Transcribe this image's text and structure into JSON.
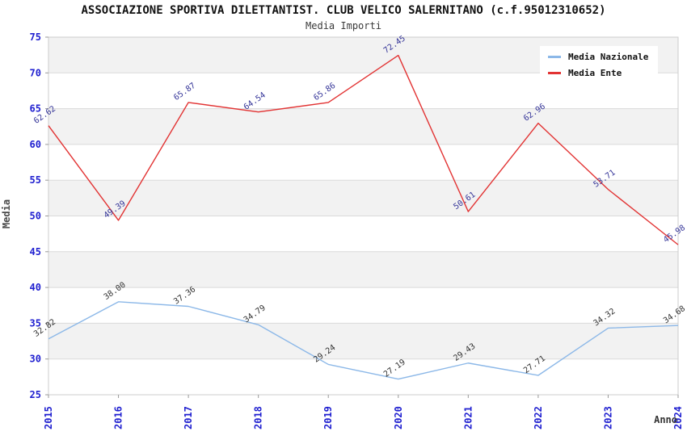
{
  "header": {
    "title": "ASSOCIAZIONE SPORTIVA DILETTANTIST. CLUB VELICO SALERNITANO (c.f.95012310652)",
    "subtitle": "Media Importi"
  },
  "chart_data": {
    "type": "line",
    "title": "ASSOCIAZIONE SPORTIVA DILETTANTIST. CLUB VELICO SALERNITANO (c.f.95012310652)",
    "subtitle": "Media Importi",
    "xlabel": "Anno",
    "ylabel": "Media",
    "categories": [
      "2015",
      "2016",
      "2017",
      "2018",
      "2019",
      "2020",
      "2021",
      "2022",
      "2023",
      "2024"
    ],
    "series": [
      {
        "name": "Media Nazionale",
        "color": "#8CB8E8",
        "label_color": "#333333",
        "values": [
          32.82,
          38.0,
          37.36,
          34.79,
          29.24,
          27.19,
          29.43,
          27.71,
          34.32,
          34.68
        ],
        "labels": [
          "32.82",
          "38.00",
          "37.36",
          "34.79",
          "29.24",
          "27.19",
          "29.43",
          "27.71",
          "34.32",
          "34.68"
        ]
      },
      {
        "name": "Media Ente",
        "color": "#E23333",
        "label_color": "#343498",
        "values": [
          62.62,
          49.39,
          65.87,
          64.54,
          65.86,
          72.45,
          50.61,
          62.96,
          53.71,
          45.98
        ],
        "labels": [
          "62.62",
          "49.39",
          "65.87",
          "64.54",
          "65.86",
          "72.45",
          "50.61",
          "62.96",
          "53.71",
          "45.98"
        ]
      }
    ],
    "ylim": [
      25,
      75
    ],
    "yticks": [
      25,
      30,
      35,
      40,
      45,
      50,
      55,
      60,
      65,
      70,
      75
    ],
    "grid": true,
    "legend_position": "top-right",
    "style": {
      "tick_label_color": "#2020D0",
      "band_color": "#F2F2F2",
      "grid_color": "#DADADA",
      "plot_border_color": "#CCCCCC",
      "tick_mark_color": "#999999"
    }
  }
}
